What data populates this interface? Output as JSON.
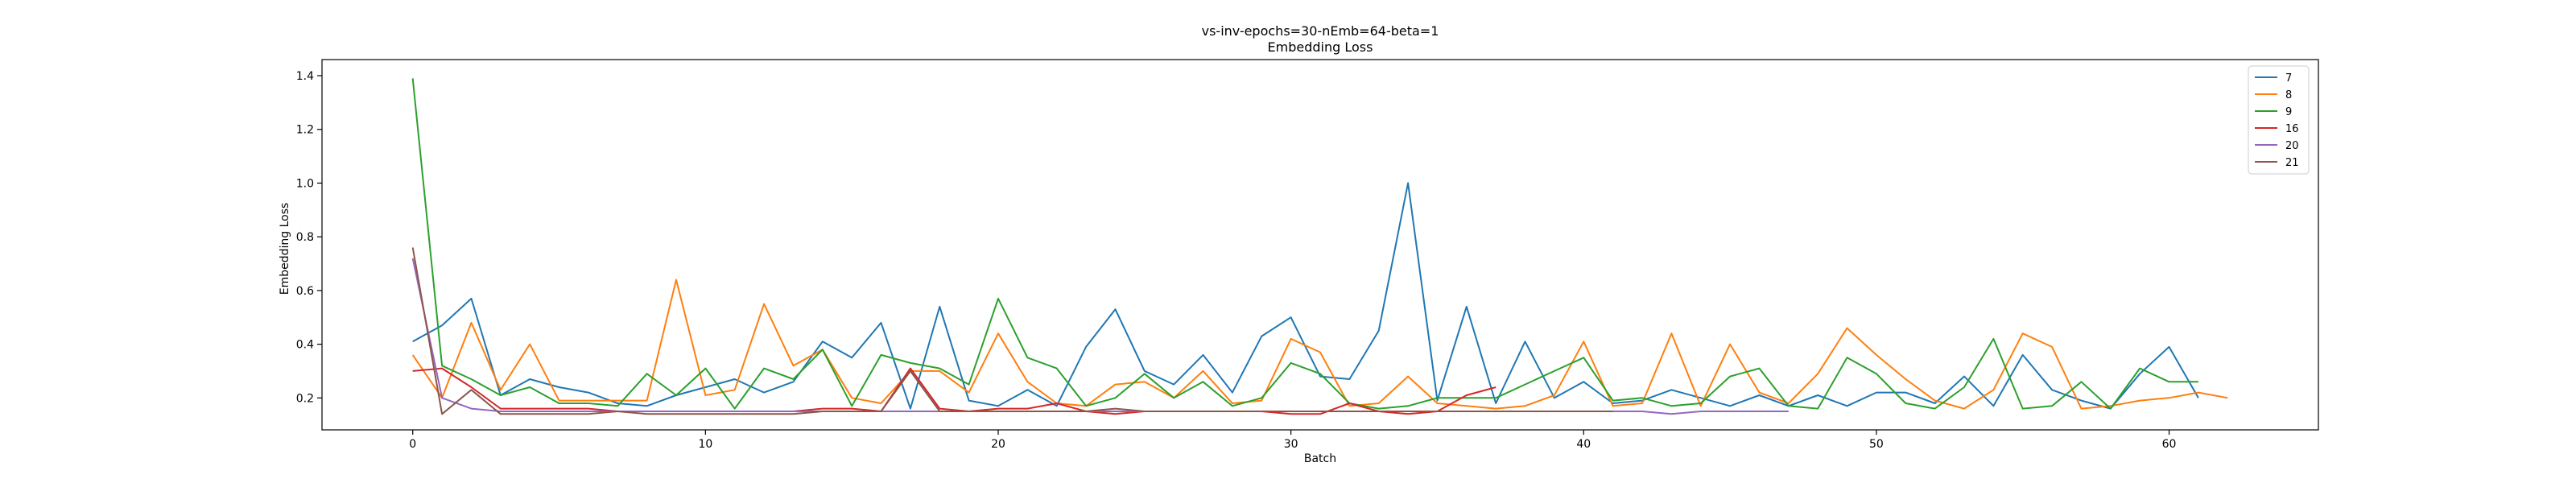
{
  "chart_data": {
    "type": "line",
    "title": "vs-inv-epochs=30-nEmb=64-beta=1",
    "subtitle": "Embedding Loss",
    "xlabel": "Batch",
    "ylabel": "Embedding Loss",
    "xlim": [
      -3.1,
      65.1
    ],
    "ylim": [
      0.081,
      1.46
    ],
    "xticks": [
      0,
      10,
      20,
      30,
      40,
      50,
      60
    ],
    "yticks": [
      0.2,
      0.4,
      0.6,
      0.8,
      1.0,
      1.2,
      1.4
    ],
    "ytick_labels": [
      "0.2",
      "0.4",
      "0.6",
      "0.8",
      "1.0",
      "1.2",
      "1.4"
    ],
    "grid": false,
    "legend_position": "top-right",
    "series": [
      {
        "name": "7",
        "color": "#1f77b4",
        "values": [
          0.41,
          0.47,
          0.57,
          0.21,
          0.27,
          0.24,
          0.22,
          0.18,
          0.17,
          0.21,
          0.24,
          0.27,
          0.22,
          0.26,
          0.41,
          0.35,
          0.48,
          0.16,
          0.54,
          0.19,
          0.17,
          0.23,
          0.17,
          0.39,
          0.53,
          0.3,
          0.25,
          0.36,
          0.22,
          0.43,
          0.5,
          0.28,
          0.27,
          0.45,
          1.0,
          0.19,
          0.54,
          0.18,
          0.41,
          0.2,
          0.26,
          0.18,
          0.19,
          0.23,
          0.2,
          0.17,
          0.21,
          0.17,
          0.21,
          0.17,
          0.22,
          0.22,
          0.18,
          0.28,
          0.17,
          0.36,
          0.23,
          0.19,
          0.16,
          0.29,
          0.39,
          0.2
        ]
      },
      {
        "name": "8",
        "color": "#ff7f0e",
        "values": [
          0.36,
          0.2,
          0.48,
          0.23,
          0.4,
          0.19,
          0.19,
          0.19,
          0.19,
          0.64,
          0.21,
          0.23,
          0.55,
          0.32,
          0.38,
          0.2,
          0.18,
          0.3,
          0.3,
          0.22,
          0.44,
          0.26,
          0.18,
          0.17,
          0.25,
          0.26,
          0.2,
          0.3,
          0.18,
          0.19,
          0.42,
          0.37,
          0.17,
          0.18,
          0.28,
          0.18,
          0.17,
          0.16,
          0.17,
          0.21,
          0.41,
          0.17,
          0.18,
          0.44,
          0.17,
          0.4,
          0.22,
          0.18,
          0.29,
          0.46,
          0.36,
          0.27,
          0.19,
          0.16,
          0.23,
          0.44,
          0.39,
          0.16,
          0.17,
          0.19,
          0.2,
          0.22,
          0.2
        ]
      },
      {
        "name": "9",
        "color": "#2ca02c",
        "values": [
          1.39,
          0.32,
          0.27,
          0.21,
          0.24,
          0.18,
          0.18,
          0.17,
          0.29,
          0.21,
          0.31,
          0.16,
          0.31,
          0.27,
          0.38,
          0.17,
          0.36,
          0.33,
          0.31,
          0.25,
          0.57,
          0.35,
          0.31,
          0.17,
          0.2,
          0.29,
          0.2,
          0.26,
          0.17,
          0.2,
          0.33,
          0.29,
          0.18,
          0.16,
          0.17,
          0.2,
          0.2,
          0.2,
          0.25,
          0.3,
          0.35,
          0.19,
          0.2,
          0.17,
          0.18,
          0.28,
          0.31,
          0.17,
          0.16,
          0.35,
          0.29,
          0.18,
          0.16,
          0.24,
          0.42,
          0.16,
          0.17,
          0.26,
          0.16,
          0.31,
          0.26,
          0.26
        ]
      },
      {
        "name": "16",
        "color": "#d62728",
        "values": [
          0.3,
          0.31,
          0.24,
          0.16,
          0.16,
          0.16,
          0.16,
          0.15,
          0.15,
          0.15,
          0.15,
          0.15,
          0.15,
          0.15,
          0.16,
          0.16,
          0.15,
          0.31,
          0.16,
          0.15,
          0.16,
          0.16,
          0.18,
          0.15,
          0.14,
          0.15,
          0.15,
          0.15,
          0.15,
          0.15,
          0.14,
          0.14,
          0.18,
          0.15,
          0.14,
          0.15,
          0.21,
          0.24
        ]
      },
      {
        "name": "20",
        "color": "#9467bd",
        "values": [
          0.72,
          0.2,
          0.16,
          0.15,
          0.15,
          0.15,
          0.15,
          0.15,
          0.15,
          0.15,
          0.15,
          0.15,
          0.15,
          0.15,
          0.15,
          0.15,
          0.15,
          0.15,
          0.15,
          0.15,
          0.15,
          0.15,
          0.15,
          0.15,
          0.15,
          0.15,
          0.15,
          0.15,
          0.15,
          0.15,
          0.15,
          0.15,
          0.15,
          0.15,
          0.15,
          0.15,
          0.15,
          0.15,
          0.15,
          0.15,
          0.15,
          0.15,
          0.15,
          0.14,
          0.15,
          0.15,
          0.15,
          0.15
        ]
      },
      {
        "name": "21",
        "color": "#8c564b",
        "values": [
          0.76,
          0.14,
          0.23,
          0.14,
          0.14,
          0.14,
          0.14,
          0.15,
          0.14,
          0.14,
          0.14,
          0.14,
          0.14,
          0.14,
          0.15,
          0.15,
          0.15,
          0.3,
          0.15,
          0.15,
          0.15,
          0.15,
          0.15,
          0.15,
          0.16,
          0.15,
          0.15,
          0.15,
          0.15,
          0.15,
          0.15,
          0.15,
          0.15,
          0.15,
          0.15,
          0.15,
          0.15,
          0.15,
          0.15,
          0.15,
          0.15,
          0.15
        ]
      }
    ]
  }
}
